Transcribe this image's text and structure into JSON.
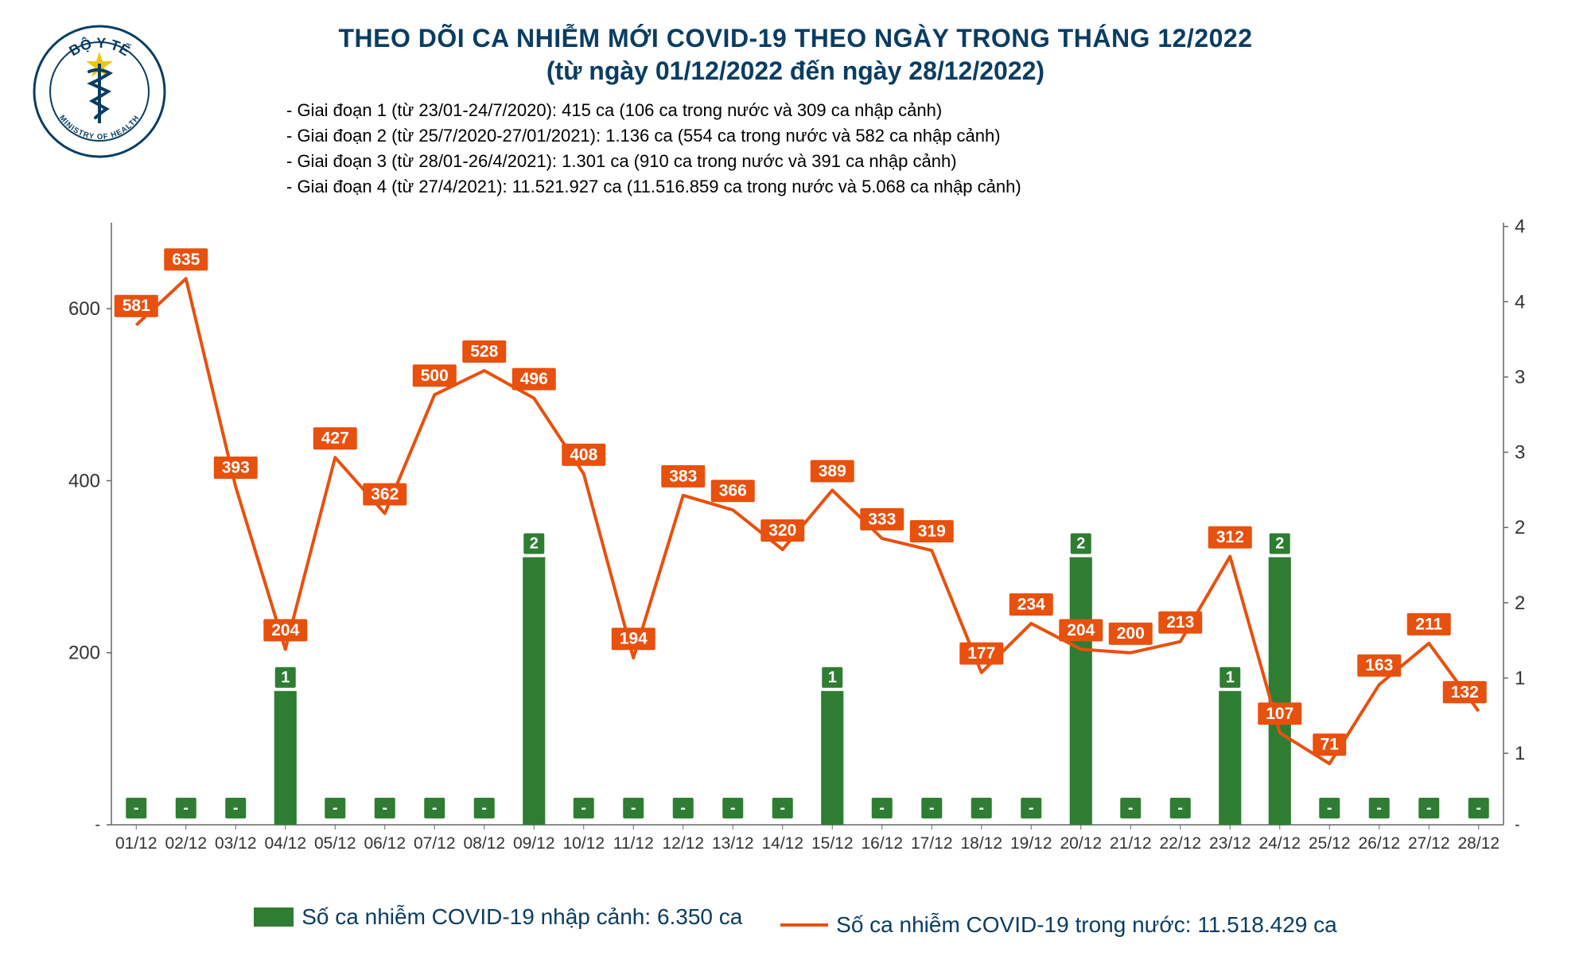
{
  "header": {
    "title": "THEO DÕI CA NHIỄM MỚI COVID-19 THEO NGÀY TRONG THÁNG 12/2022",
    "subtitle": "(từ ngày 01/12/2022 đến ngày 28/12/2022)"
  },
  "stages": [
    "- Giai đoạn 1 (từ 23/01-24/7/2020): 415 ca (106 ca trong nước và 309 ca nhập cảnh)",
    "- Giai đoạn 2 (từ 25/7/2020-27/01/2021): 1.136 ca (554 ca trong nước và 582 ca nhập cảnh)",
    "- Giai đoạn 3 (từ 28/01-26/4/2021): 1.301 ca (910 ca trong nước và 391 ca nhập cảnh)",
    "- Giai đoạn 4 (từ 27/4/2021): 11.521.927 ca (11.516.859 ca trong nước và 5.068 ca nhập cảnh)"
  ],
  "chart": {
    "type": "combo-bar-line",
    "categories": [
      "01/12",
      "02/12",
      "03/12",
      "04/12",
      "05/12",
      "06/12",
      "07/12",
      "08/12",
      "09/12",
      "10/12",
      "11/12",
      "12/12",
      "13/12",
      "14/12",
      "15/12",
      "16/12",
      "17/12",
      "18/12",
      "19/12",
      "20/12",
      "21/12",
      "22/12",
      "23/12",
      "24/12",
      "25/12",
      "26/12",
      "27/12",
      "28/12"
    ],
    "line_values": [
      581,
      635,
      393,
      204,
      427,
      362,
      500,
      528,
      496,
      408,
      194,
      383,
      366,
      320,
      389,
      333,
      319,
      177,
      234,
      204,
      200,
      213,
      312,
      107,
      71,
      163,
      211,
      132
    ],
    "bar_values": [
      0,
      0,
      0,
      1,
      0,
      0,
      0,
      0,
      2,
      0,
      0,
      0,
      0,
      0,
      1,
      0,
      0,
      0,
      0,
      2,
      0,
      0,
      1,
      2,
      0,
      0,
      0,
      0
    ],
    "bar_labels": [
      "-",
      "-",
      "-",
      "1",
      "-",
      "-",
      "-",
      "-",
      "2",
      "-",
      "-",
      "-",
      "-",
      "-",
      "1",
      "-",
      "-",
      "-",
      "-",
      "2",
      "-",
      "-",
      "1",
      "2",
      "-",
      "-",
      "-",
      "-"
    ],
    "left_axis": {
      "min": 0,
      "max": 700,
      "ticks": [
        200,
        400,
        600
      ],
      "label_fontsize": 24
    },
    "right_axis": {
      "min": 0,
      "max": 4.5,
      "ticks": [
        1,
        1,
        2,
        2,
        3,
        3,
        4,
        4
      ]
    },
    "line_color": "#e8500e",
    "line_width": 4,
    "bar_color": "#2e7d32",
    "bar_width_ratio": 0.45,
    "label_box_color": "#e8500e",
    "label_text_color": "#ffffff",
    "background_color": "#ffffff",
    "axis_color": "#666666"
  },
  "legend": {
    "bar_label": "Số ca nhiễm COVID-19 nhập cảnh: 6.350 ca",
    "line_label": "Số ca nhiễm COVID-19 trong nước: 11.518.429 ca",
    "bar_color": "#2e7d32",
    "line_color": "#e8500e"
  },
  "logo": {
    "title": "BỘ Y TẾ",
    "subtitle": "MINISTRY OF HEALTH",
    "outer_color": "#0a3d62",
    "star_color": "#f1c40f",
    "snake_color": "#0a3d62"
  }
}
